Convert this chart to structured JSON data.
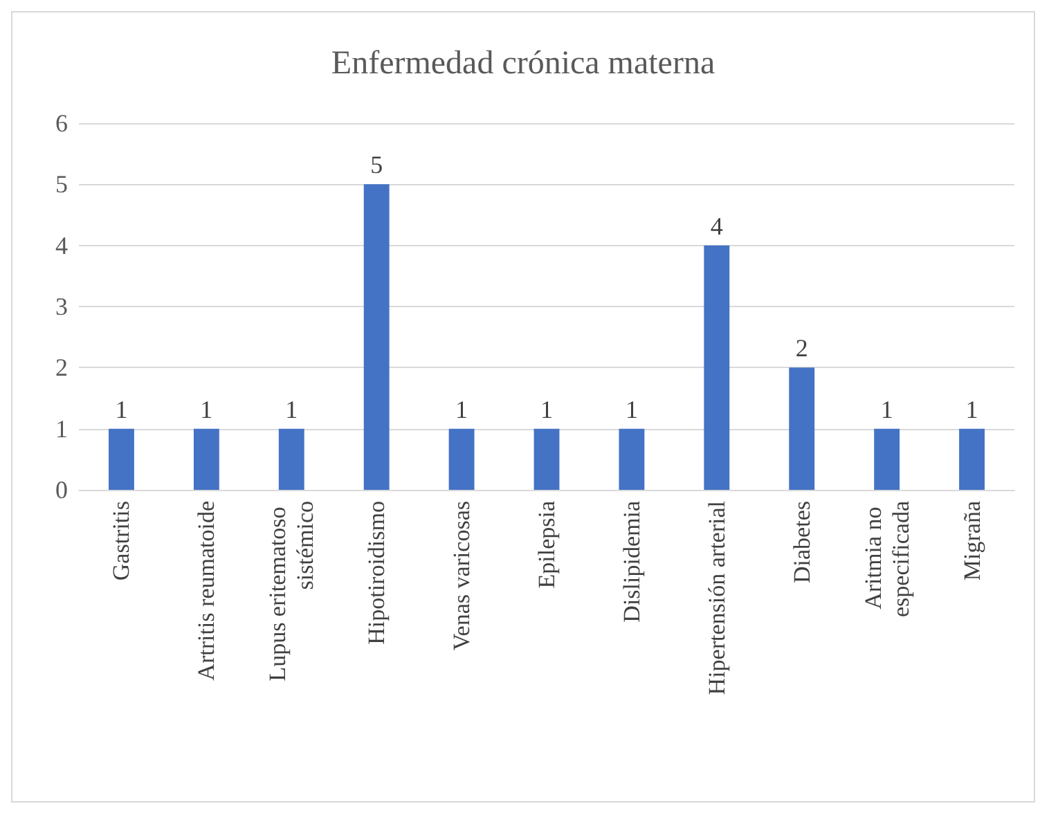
{
  "chart_data": {
    "type": "bar",
    "title": "Enfermedad crónica materna",
    "categories": [
      "Gastritis",
      "Artritis reumatoide",
      "Lupus eritematoso sistémico",
      "Hipotiroidismo",
      "Venas varicosas",
      "Epilepsia",
      "Dislipidemia",
      "Hipertensión arterial",
      "Diabetes",
      "Aritmia no especificada",
      "Migraña"
    ],
    "values": [
      1,
      1,
      1,
      5,
      1,
      1,
      1,
      4,
      2,
      1,
      1
    ],
    "color": "#4472c4",
    "ylim": [
      0,
      6
    ],
    "yticks": [
      0,
      1,
      2,
      3,
      4,
      5,
      6
    ],
    "grid": "y",
    "data_labels": true
  }
}
